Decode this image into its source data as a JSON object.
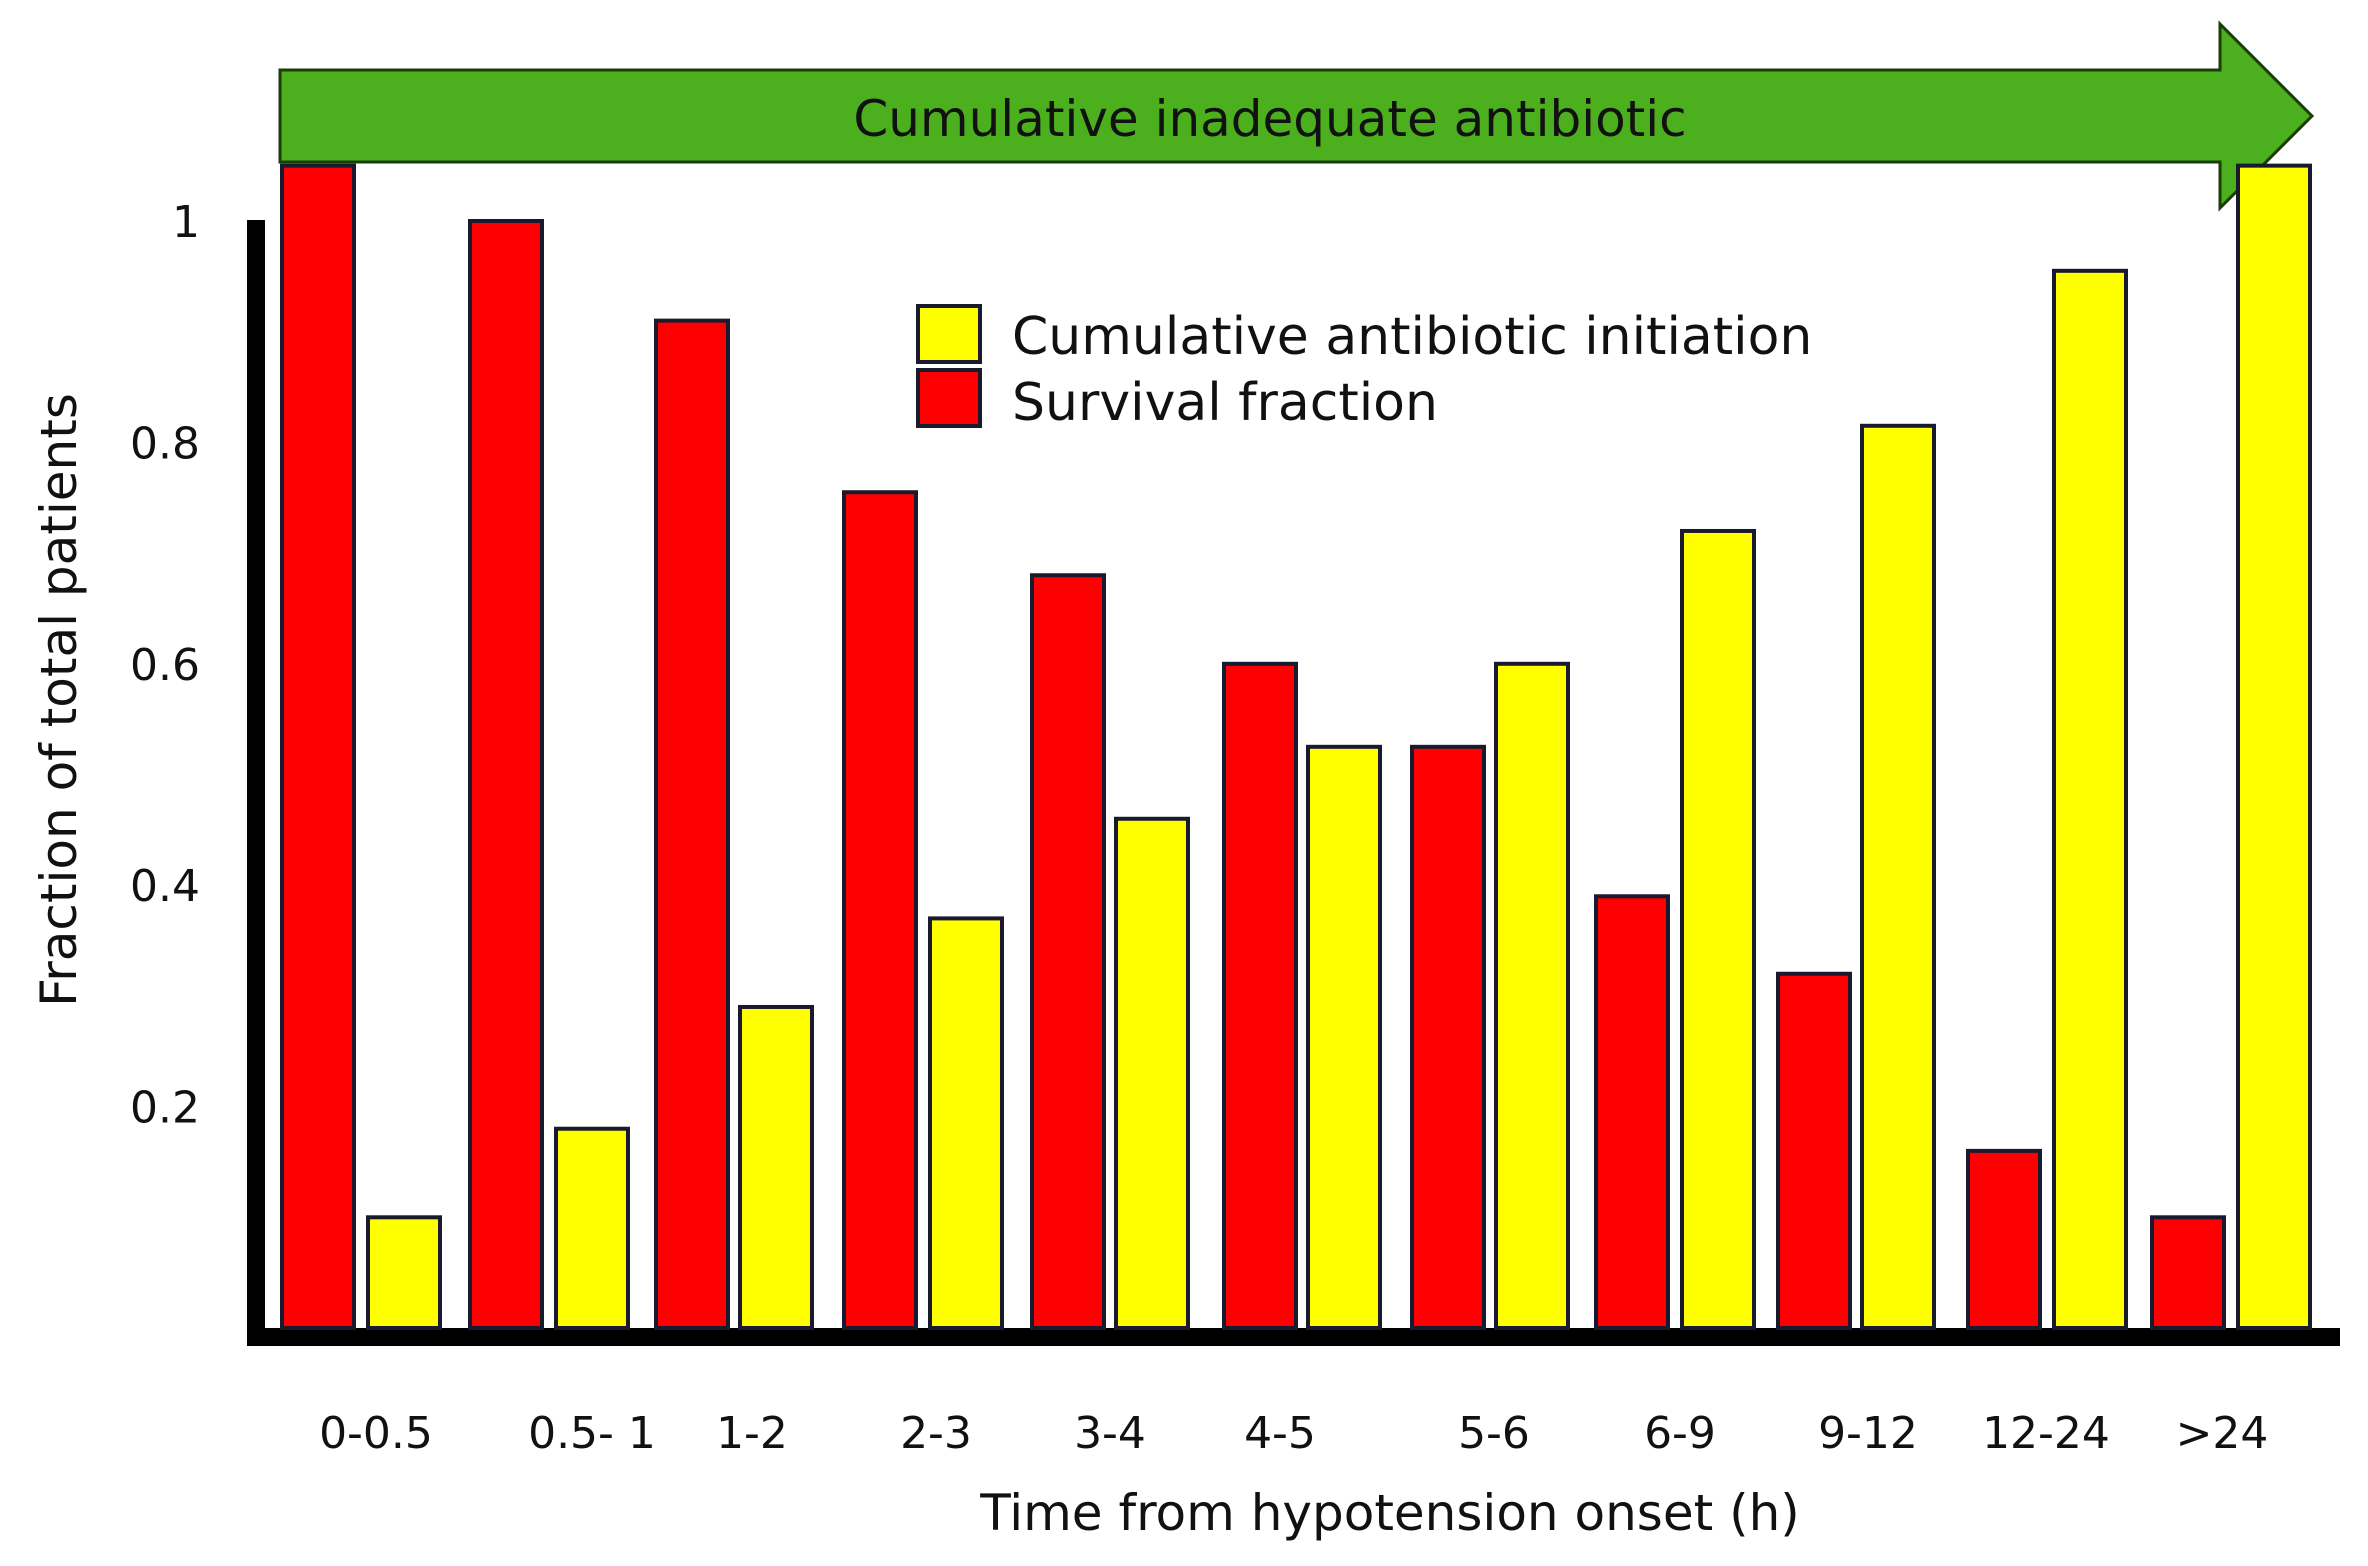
{
  "banner": {
    "text": "Cumulative inadequate antibiotic",
    "color": "#4caf1e"
  },
  "chart_data": {
    "type": "bar",
    "title": "",
    "xlabel": "Time from hypotension onset (h)",
    "ylabel": "Fraction of total patients",
    "categories": [
      "0-0.5",
      "0.5- 1",
      "1-2",
      "2-3",
      "3-4",
      "4-5",
      "5-6",
      "6-9",
      "9-12",
      "12-24",
      ">24"
    ],
    "ylim": [
      0,
      1.05
    ],
    "yticks": [
      "0.2",
      "0.4",
      "0.6",
      "0.8",
      "1"
    ],
    "grid": false,
    "legend_position": "top-center",
    "series": [
      {
        "name": "Survival fraction",
        "color": "#ff0000",
        "values": [
          1.05,
          1.0,
          0.91,
          0.755,
          0.68,
          0.6,
          0.525,
          0.39,
          0.32,
          0.16,
          0.1
        ]
      },
      {
        "name": "Cumulative antibiotic initiation",
        "color": "#ffff00",
        "values": [
          0.1,
          0.18,
          0.29,
          0.37,
          0.46,
          0.525,
          0.6,
          0.72,
          0.815,
          0.955,
          1.05
        ]
      }
    ]
  }
}
